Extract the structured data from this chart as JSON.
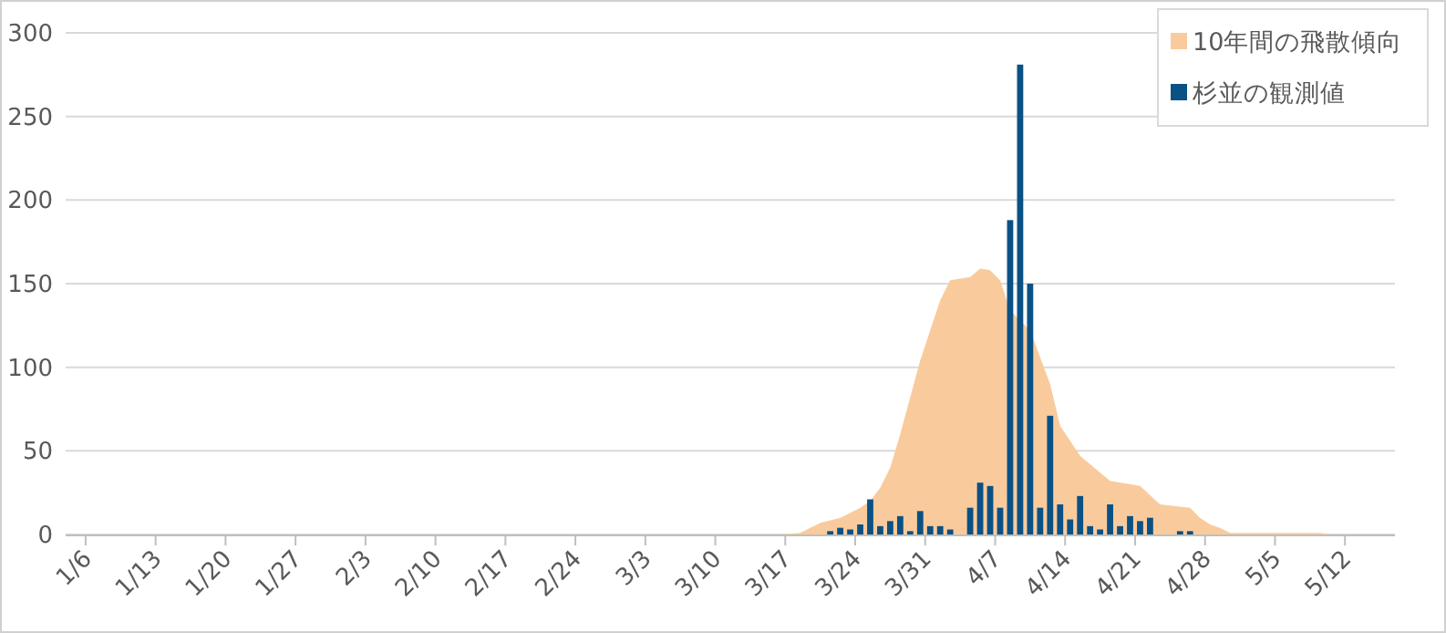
{
  "chart_data": {
    "type": "bar",
    "xlim": [
      "--01-04",
      "--05-17"
    ],
    "xticks": [
      {
        "value": "--01-06",
        "label": "1/6"
      },
      {
        "value": "--01-13",
        "label": "1/13"
      },
      {
        "value": "--01-20",
        "label": "1/20"
      },
      {
        "value": "--01-27",
        "label": "1/27"
      },
      {
        "value": "--02-03",
        "label": "2/3"
      },
      {
        "value": "--02-10",
        "label": "2/10"
      },
      {
        "value": "--02-17",
        "label": "2/17"
      },
      {
        "value": "--02-24",
        "label": "2/24"
      },
      {
        "value": "--03-03",
        "label": "3/3"
      },
      {
        "value": "--03-10",
        "label": "3/10"
      },
      {
        "value": "--03-17",
        "label": "3/17"
      },
      {
        "value": "--03-24",
        "label": "3/24"
      },
      {
        "value": "--03-31",
        "label": "3/31"
      },
      {
        "value": "--04-07",
        "label": "4/7"
      },
      {
        "value": "--04-14",
        "label": "4/14"
      },
      {
        "value": "--04-21",
        "label": "4/21"
      },
      {
        "value": "--04-28",
        "label": "4/28"
      },
      {
        "value": "--05-05",
        "label": "5/5"
      },
      {
        "value": "--05-12",
        "label": "5/12"
      }
    ],
    "ylim": [
      0,
      300
    ],
    "yticks": [
      0,
      50,
      100,
      150,
      200,
      250,
      300
    ],
    "grid": "y",
    "legend": "top right",
    "series": [
      {
        "name": "10年間の飛散傾向",
        "type": "area",
        "color": "#f9cb9c",
        "x": [
          "--03-16",
          "--03-18",
          "--03-20",
          "--03-22",
          "--03-24",
          "--03-25",
          "--03-26",
          "--03-27",
          "--03-28",
          "--03-29",
          "--03-30",
          "--04-01",
          "--04-02",
          "--04-04",
          "--04-05",
          "--04-06",
          "--04-07",
          "--04-08",
          "--04-10",
          "--04-12",
          "--04-13",
          "--04-15",
          "--04-18",
          "--04-21",
          "--04-23",
          "--04-26",
          "--04-27",
          "--04-28",
          "--04-29",
          "--04-30",
          "--05-09",
          "--05-10"
        ],
        "values": [
          0,
          1,
          7,
          10,
          16,
          20,
          28,
          40,
          60,
          82,
          104,
          140,
          152,
          154,
          159,
          158,
          152,
          134,
          122,
          90,
          65,
          47,
          32,
          29,
          18,
          16,
          10,
          6,
          4,
          1,
          1,
          0
        ]
      },
      {
        "name": "杉並の観測値",
        "color": "#0a5185",
        "x": [
          "--03-21",
          "--03-22",
          "--03-23",
          "--03-24",
          "--03-25",
          "--03-26",
          "--03-27",
          "--03-28",
          "--03-29",
          "--03-30",
          "--03-31",
          "--04-01",
          "--04-02",
          "--04-04",
          "--04-05",
          "--04-06",
          "--04-07",
          "--04-08",
          "--04-09",
          "--04-10",
          "--04-11",
          "--04-12",
          "--04-13",
          "--04-14",
          "--04-15",
          "--04-16",
          "--04-17",
          "--04-18",
          "--04-19",
          "--04-20",
          "--04-21",
          "--04-22",
          "--04-25",
          "--04-26"
        ],
        "values": [
          2,
          4,
          3,
          6,
          21,
          5,
          8,
          11,
          2,
          14,
          5,
          5,
          3,
          16,
          31,
          29,
          16,
          188,
          281,
          150,
          16,
          71,
          18,
          9,
          23,
          5,
          3,
          18,
          5,
          11,
          8,
          10,
          2,
          2
        ]
      }
    ]
  }
}
